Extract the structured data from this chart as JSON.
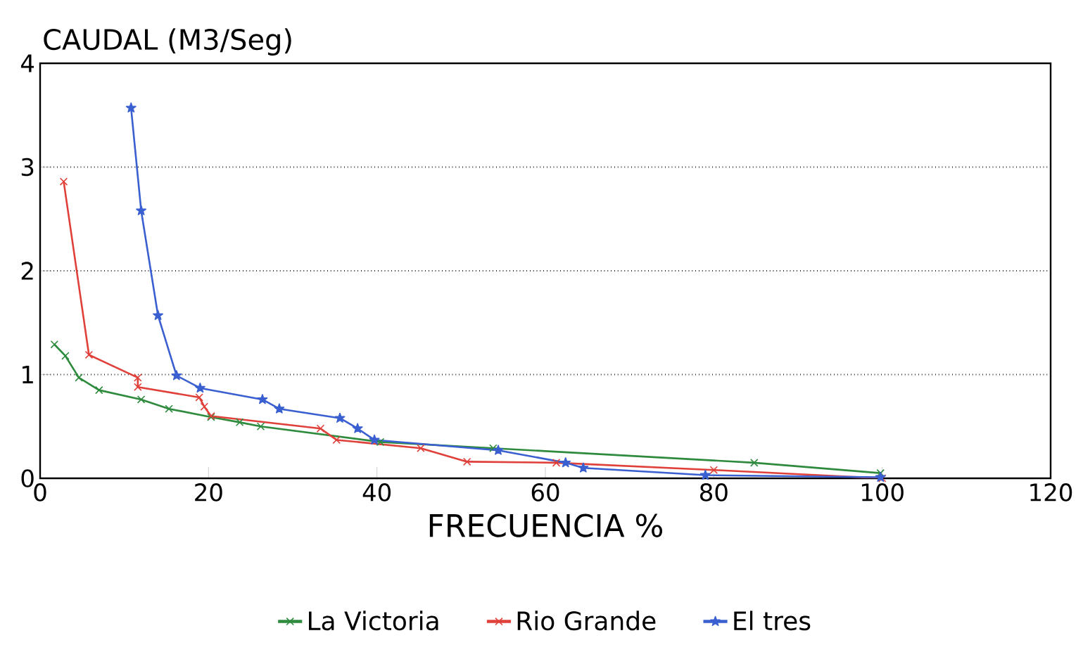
{
  "chart_data": {
    "type": "line",
    "ylabel": "CAUDAL (M3/Seg)",
    "xlabel": "FRECUENCIA %",
    "xlim": [
      0,
      120
    ],
    "xticks": [
      0,
      20,
      40,
      60,
      80,
      100,
      120
    ],
    "ylim": [
      0,
      4
    ],
    "yticks": [
      0,
      1,
      2,
      3,
      4
    ],
    "grid": "y",
    "legend": "bottom",
    "line_style": "solid",
    "series": [
      {
        "name": "La Victoria",
        "color": "#2e8b3e",
        "marker": "cross",
        "x": [
          1.7,
          3,
          4.6,
          7,
          12,
          15.3,
          20.3,
          23.7,
          26.2,
          40.4,
          53.8,
          84.8,
          99.8
        ],
        "values": [
          1.29,
          1.18,
          0.97,
          0.85,
          0.76,
          0.67,
          0.59,
          0.54,
          0.5,
          0.35,
          0.29,
          0.15,
          0.05
        ]
      },
      {
        "name": "Rio Grande",
        "color": "#e0403a",
        "marker": "cross",
        "x": [
          2.8,
          5.8,
          11.6,
          11.6,
          18.9,
          19.5,
          20.3,
          33.3,
          35.2,
          45.2,
          50.7,
          61.3,
          80,
          100
        ],
        "values": [
          2.86,
          1.19,
          0.97,
          0.88,
          0.78,
          0.69,
          0.6,
          0.48,
          0.37,
          0.29,
          0.16,
          0.15,
          0.08,
          0
        ]
      },
      {
        "name": "El tres",
        "color": "#3a5fd0",
        "marker": "star",
        "x": [
          10.8,
          12,
          14,
          16.2,
          19,
          26.4,
          28.4,
          35.6,
          37.7,
          39.7,
          54.4,
          62.4,
          64.5,
          79,
          99.8
        ],
        "values": [
          3.57,
          2.58,
          1.57,
          0.99,
          0.87,
          0.76,
          0.67,
          0.58,
          0.48,
          0.37,
          0.27,
          0.15,
          0.1,
          0.03,
          0.01
        ]
      }
    ]
  }
}
